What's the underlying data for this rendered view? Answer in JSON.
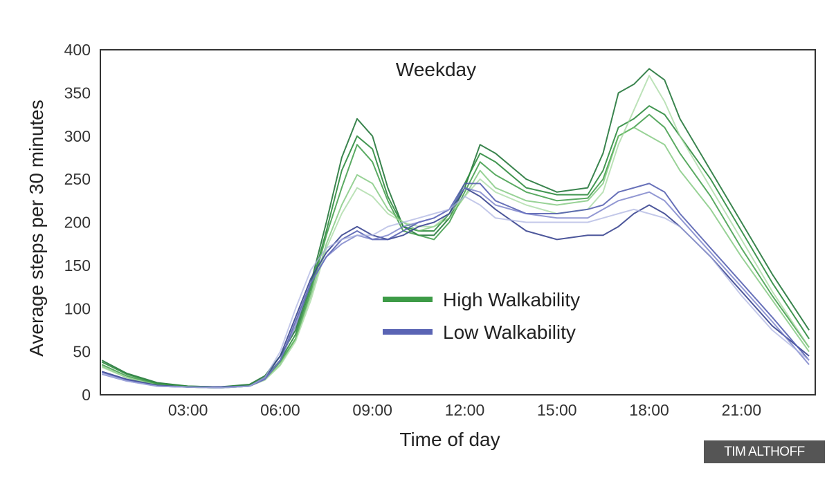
{
  "chart_data": {
    "type": "line",
    "title": "Weekday",
    "xlabel": "Time of day",
    "ylabel": "Average steps per 30 minutes",
    "ylim": [
      0,
      400
    ],
    "xlim_hours": [
      0.15,
      23.4
    ],
    "yticks": [
      "0",
      "50",
      "100",
      "150",
      "200",
      "250",
      "300",
      "350",
      "400"
    ],
    "ytick_values": [
      0,
      50,
      100,
      150,
      200,
      250,
      300,
      350,
      400
    ],
    "xticks": [
      "03:00",
      "06:00",
      "09:00",
      "12:00",
      "15:00",
      "18:00",
      "21:00"
    ],
    "xtick_values": [
      3,
      6,
      9,
      12,
      15,
      18,
      21
    ],
    "grid": false,
    "legend": {
      "placement": "center",
      "entries": [
        {
          "label": "High Walkability",
          "color": "#3d9b47"
        },
        {
          "label": "Low Walkability",
          "color": "#5a64b4"
        }
      ]
    },
    "x": [
      0.2,
      1,
      2,
      3,
      4,
      5,
      5.5,
      6,
      6.5,
      7,
      7.5,
      8,
      8.5,
      9,
      9.5,
      10,
      10.5,
      11,
      11.5,
      12,
      12.5,
      13,
      14,
      15,
      16,
      16.5,
      17,
      17.5,
      18,
      18.5,
      19,
      20,
      21,
      22,
      23.2
    ],
    "series": [
      {
        "name": "High Walkability",
        "color": "#2f7d45",
        "opacity": 0.95,
        "values": [
          40,
          25,
          14,
          10,
          9,
          12,
          22,
          45,
          75,
          130,
          200,
          275,
          320,
          300,
          240,
          195,
          185,
          185,
          205,
          240,
          290,
          280,
          250,
          235,
          240,
          280,
          350,
          360,
          378,
          365,
          320,
          260,
          200,
          140,
          75
        ]
      },
      {
        "name": "High Walkability",
        "color": "#2e8b3e",
        "opacity": 0.9,
        "values": [
          38,
          24,
          13,
          10,
          9,
          11,
          20,
          40,
          70,
          125,
          190,
          260,
          300,
          285,
          230,
          195,
          190,
          190,
          210,
          245,
          280,
          270,
          240,
          232,
          232,
          260,
          310,
          320,
          335,
          325,
          300,
          250,
          190,
          130,
          65
        ]
      },
      {
        "name": "High Walkability",
        "color": "#3d9b47",
        "opacity": 0.85,
        "values": [
          35,
          22,
          12,
          9,
          8,
          10,
          18,
          38,
          65,
          120,
          185,
          240,
          290,
          270,
          225,
          190,
          185,
          180,
          200,
          235,
          270,
          255,
          235,
          225,
          228,
          250,
          300,
          310,
          325,
          310,
          280,
          230,
          170,
          115,
          55
        ]
      },
      {
        "name": "High Walkability",
        "color": "#6cbf6a",
        "opacity": 0.7,
        "values": [
          33,
          20,
          11,
          9,
          8,
          10,
          18,
          35,
          65,
          115,
          175,
          220,
          255,
          245,
          215,
          200,
          190,
          195,
          205,
          230,
          260,
          240,
          225,
          220,
          225,
          245,
          300,
          310,
          300,
          290,
          260,
          215,
          160,
          110,
          50
        ]
      },
      {
        "name": "High Walkability",
        "color": "#9fd69a",
        "opacity": 0.7,
        "values": [
          32,
          20,
          11,
          9,
          8,
          10,
          17,
          34,
          62,
          110,
          170,
          210,
          240,
          230,
          210,
          200,
          195,
          195,
          210,
          230,
          250,
          235,
          220,
          210,
          215,
          235,
          290,
          330,
          370,
          340,
          300,
          240,
          180,
          120,
          55
        ]
      },
      {
        "name": "Low Walkability",
        "color": "#3a4590",
        "opacity": 0.9,
        "values": [
          27,
          18,
          11,
          9,
          9,
          10,
          20,
          45,
          90,
          135,
          165,
          185,
          195,
          185,
          180,
          185,
          195,
          200,
          210,
          240,
          230,
          215,
          190,
          180,
          185,
          185,
          195,
          210,
          220,
          210,
          195,
          160,
          120,
          80,
          45
        ]
      },
      {
        "name": "Low Walkability",
        "color": "#4d58ad",
        "opacity": 0.85,
        "values": [
          26,
          17,
          10,
          9,
          9,
          10,
          18,
          40,
          85,
          130,
          160,
          180,
          190,
          180,
          180,
          190,
          200,
          205,
          215,
          245,
          245,
          225,
          210,
          210,
          215,
          220,
          235,
          240,
          245,
          235,
          210,
          170,
          130,
          90,
          40
        ]
      },
      {
        "name": "Low Walkability",
        "color": "#6d76c4",
        "opacity": 0.75,
        "values": [
          24,
          16,
          10,
          9,
          8,
          10,
          18,
          40,
          80,
          130,
          160,
          175,
          185,
          180,
          185,
          195,
          200,
          205,
          215,
          240,
          235,
          220,
          210,
          205,
          205,
          215,
          225,
          230,
          235,
          225,
          205,
          165,
          125,
          85,
          35
        ]
      },
      {
        "name": "Low Walkability",
        "color": "#aab0e0",
        "opacity": 0.7,
        "values": [
          25,
          16,
          10,
          9,
          8,
          10,
          20,
          50,
          100,
          145,
          170,
          180,
          185,
          185,
          195,
          200,
          205,
          210,
          215,
          230,
          220,
          205,
          200,
          200,
          200,
          205,
          210,
          215,
          210,
          205,
          195,
          160,
          115,
          75,
          40
        ]
      }
    ]
  },
  "watermark": "TIM ALTHOFF"
}
